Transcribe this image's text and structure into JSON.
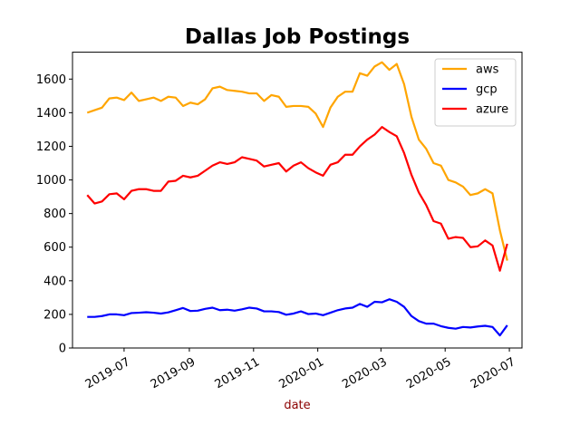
{
  "chart_data": {
    "type": "line",
    "title": "Dallas Job Postings",
    "xlabel": "date",
    "ylabel": "",
    "xlabel_color": "#8b0000",
    "x_tick_labels": [
      "2019-07",
      "2019-09",
      "2019-11",
      "2020-01",
      "2020-03",
      "2020-05",
      "2020-07"
    ],
    "x_tick_dates": [
      "2019-07-01",
      "2019-09-01",
      "2019-11-01",
      "2020-01-01",
      "2020-03-01",
      "2020-05-01",
      "2020-07-01"
    ],
    "xlim": [
      "2019-05-13",
      "2020-07-13"
    ],
    "ylim": [
      0,
      1760
    ],
    "y_ticks": [
      0,
      200,
      400,
      600,
      800,
      1000,
      1200,
      1400,
      1600
    ],
    "grid": false,
    "legend_position": "top-right",
    "x": [
      "2019-05-27",
      "2019-06-03",
      "2019-06-10",
      "2019-06-17",
      "2019-06-24",
      "2019-07-01",
      "2019-07-08",
      "2019-07-15",
      "2019-07-22",
      "2019-07-29",
      "2019-08-05",
      "2019-08-12",
      "2019-08-19",
      "2019-08-26",
      "2019-09-02",
      "2019-09-09",
      "2019-09-16",
      "2019-09-23",
      "2019-09-30",
      "2019-10-07",
      "2019-10-14",
      "2019-10-21",
      "2019-10-28",
      "2019-11-04",
      "2019-11-11",
      "2019-11-18",
      "2019-11-25",
      "2019-12-02",
      "2019-12-09",
      "2019-12-16",
      "2019-12-23",
      "2019-12-30",
      "2020-01-06",
      "2020-01-13",
      "2020-01-20",
      "2020-01-27",
      "2020-02-03",
      "2020-02-10",
      "2020-02-17",
      "2020-02-24",
      "2020-03-02",
      "2020-03-09",
      "2020-03-16",
      "2020-03-23",
      "2020-03-30",
      "2020-04-06",
      "2020-04-13",
      "2020-04-20",
      "2020-04-27",
      "2020-05-04",
      "2020-05-11",
      "2020-05-18",
      "2020-05-25",
      "2020-06-01",
      "2020-06-08",
      "2020-06-15",
      "2020-06-22",
      "2020-06-29"
    ],
    "series": [
      {
        "name": "aws",
        "color": "#ffa500",
        "values": [
          1400,
          1415,
          1430,
          1485,
          1490,
          1475,
          1520,
          1470,
          1480,
          1490,
          1470,
          1495,
          1490,
          1440,
          1460,
          1450,
          1480,
          1545,
          1555,
          1535,
          1530,
          1525,
          1515,
          1515,
          1470,
          1505,
          1495,
          1435,
          1440,
          1440,
          1435,
          1395,
          1315,
          1430,
          1495,
          1525,
          1525,
          1635,
          1620,
          1675,
          1700,
          1655,
          1690,
          1570,
          1375,
          1240,
          1185,
          1100,
          1085,
          1000,
          985,
          960,
          910,
          920,
          945,
          920,
          700,
          520
        ]
      },
      {
        "name": "gcp",
        "color": "#0000ff",
        "values": [
          185,
          185,
          190,
          200,
          200,
          195,
          208,
          210,
          213,
          210,
          205,
          212,
          225,
          238,
          220,
          222,
          233,
          240,
          225,
          228,
          222,
          230,
          240,
          235,
          218,
          218,
          214,
          198,
          205,
          218,
          202,
          205,
          195,
          210,
          225,
          235,
          240,
          262,
          245,
          275,
          272,
          290,
          275,
          245,
          190,
          160,
          145,
          145,
          130,
          120,
          115,
          125,
          122,
          128,
          132,
          125,
          75,
          135
        ]
      },
      {
        "name": "azure",
        "color": "#ff0000",
        "values": [
          910,
          860,
          872,
          915,
          920,
          885,
          935,
          945,
          945,
          935,
          935,
          990,
          995,
          1025,
          1015,
          1025,
          1055,
          1085,
          1105,
          1095,
          1105,
          1135,
          1125,
          1115,
          1080,
          1090,
          1100,
          1050,
          1085,
          1105,
          1070,
          1045,
          1025,
          1090,
          1105,
          1150,
          1150,
          1200,
          1240,
          1270,
          1315,
          1285,
          1260,
          1160,
          1030,
          925,
          850,
          755,
          740,
          650,
          660,
          655,
          600,
          605,
          640,
          610,
          460,
          620
        ]
      }
    ]
  }
}
